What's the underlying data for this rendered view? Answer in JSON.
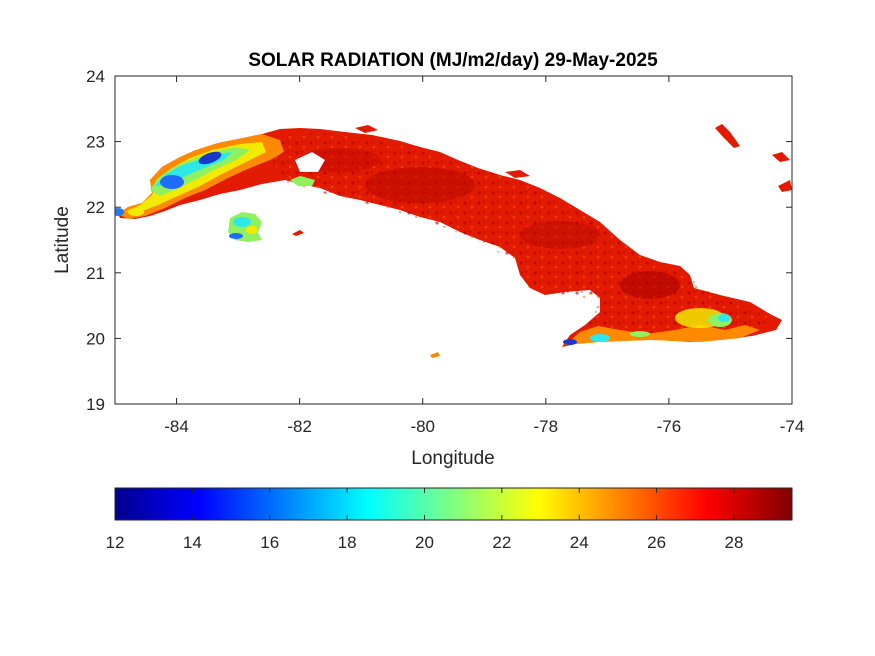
{
  "figure": {
    "title": "SOLAR RADIATION (MJ/m2/day) 29-May-2025",
    "xlabel": "Longitude",
    "ylabel": "Latitude"
  },
  "axes": {
    "xlim": [
      -85,
      -74
    ],
    "ylim": [
      19,
      24
    ],
    "xticks": [
      -84,
      -82,
      -80,
      -78,
      -76,
      -74
    ],
    "yticks": [
      19,
      20,
      21,
      22,
      23,
      24
    ],
    "xtick_labels": [
      "-84",
      "-82",
      "-80",
      "-78",
      "-76",
      "-74"
    ],
    "ytick_labels": [
      "19",
      "20",
      "21",
      "22",
      "23",
      "24"
    ]
  },
  "colorbar": {
    "colormap": "jet",
    "range": [
      12,
      29.5
    ],
    "ticks": [
      12,
      14,
      16,
      18,
      20,
      22,
      24,
      26,
      28
    ],
    "tick_labels": [
      "12",
      "14",
      "16",
      "18",
      "20",
      "22",
      "24",
      "26",
      "28"
    ],
    "colors": [
      "#00008f",
      "#0000ff",
      "#0080ff",
      "#00ffff",
      "#80ff80",
      "#ffff00",
      "#ff8000",
      "#ff0000",
      "#800000"
    ]
  },
  "map": {
    "region": "Cuba",
    "dominant_value_range": [
      26,
      29
    ],
    "low_value_areas": [
      {
        "area": "Pinar del Rio (west)",
        "approx_range": [
          14,
          22
        ]
      },
      {
        "area": "Isla de la Juventud",
        "approx_range": [
          18,
          24
        ]
      },
      {
        "area": "Southeast coast (Granma / Santiago)",
        "approx_range": [
          16,
          23
        ]
      }
    ],
    "palette": {
      "high": "#e81400",
      "mid_high": "#ff3a00",
      "very_high": "#a80000",
      "orange": "#ff8a00",
      "yellow": "#f2ea00",
      "green": "#8ff060",
      "cyan": "#2ee8e8",
      "blue": "#1e6cff",
      "dark_blue": "#1a38c8"
    }
  }
}
